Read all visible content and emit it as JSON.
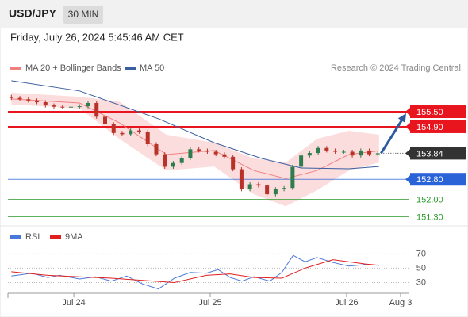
{
  "header": {
    "symbol": "USD/JPY",
    "interval": "30 MIN",
    "datetime": "Friday, July 26, 2024 5:45:46 AM CET"
  },
  "chart_data": [
    {
      "type": "candlestick",
      "credit": "Research © 2024 Trading Central",
      "xlim": [
        -11.6,
        58.9
      ],
      "ylim": [
        151.0,
        156.8
      ],
      "up_color": "#2e7d4f",
      "down_color": "#b83227",
      "candles": {
        "x": [
          -11,
          -9.5,
          -8,
          -6.5,
          -5,
          -3.5,
          -2,
          -0.5,
          1,
          2.5,
          4,
          5.5,
          7,
          8.5,
          10,
          11.5,
          13,
          14.5,
          16,
          17.5,
          19,
          20.5,
          22,
          23.5,
          25,
          26.5,
          28,
          29.5,
          31,
          32.5,
          34,
          35.5,
          37,
          38.5,
          40,
          41.5,
          43,
          44.5,
          46,
          47.5,
          49,
          50.5,
          52,
          53.5
        ],
        "open": [
          156.1,
          156.05,
          156.0,
          155.95,
          155.88,
          155.75,
          155.7,
          155.68,
          155.7,
          155.72,
          155.85,
          155.3,
          155.0,
          154.65,
          154.6,
          154.75,
          154.7,
          154.2,
          153.8,
          153.3,
          153.45,
          153.65,
          154.0,
          153.95,
          153.9,
          153.8,
          153.7,
          153.2,
          152.4,
          152.6,
          152.55,
          152.2,
          152.4,
          152.45,
          153.3,
          153.75,
          153.85,
          154.05,
          153.95,
          153.9,
          153.9,
          153.75,
          153.95,
          153.8
        ],
        "high": [
          156.18,
          156.13,
          156.08,
          156.03,
          155.96,
          155.83,
          155.78,
          155.78,
          155.8,
          155.93,
          155.93,
          155.38,
          155.08,
          154.73,
          154.83,
          154.83,
          154.78,
          154.28,
          153.88,
          153.53,
          153.73,
          154.08,
          154.08,
          154.03,
          153.98,
          153.88,
          153.78,
          153.28,
          152.68,
          152.68,
          152.63,
          152.48,
          152.53,
          153.38,
          153.83,
          153.93,
          154.13,
          154.13,
          154.03,
          153.98,
          153.98,
          154.03,
          154.03,
          153.92
        ],
        "low": [
          155.97,
          155.92,
          155.87,
          155.8,
          155.67,
          155.62,
          155.6,
          155.6,
          155.62,
          155.64,
          155.22,
          154.92,
          154.57,
          154.52,
          154.52,
          154.62,
          154.12,
          153.72,
          153.22,
          153.22,
          153.37,
          153.57,
          153.87,
          153.82,
          153.72,
          153.62,
          153.12,
          152.32,
          152.32,
          152.47,
          152.12,
          152.12,
          152.32,
          152.37,
          153.22,
          153.67,
          153.77,
          153.87,
          153.82,
          153.82,
          153.67,
          153.67,
          153.72,
          153.72
        ],
        "close": [
          156.05,
          156.0,
          155.95,
          155.88,
          155.75,
          155.7,
          155.68,
          155.7,
          155.72,
          155.85,
          155.3,
          155.0,
          154.65,
          154.6,
          154.75,
          154.7,
          154.2,
          153.8,
          153.3,
          153.45,
          153.65,
          154.0,
          153.95,
          153.9,
          153.8,
          153.7,
          153.2,
          152.4,
          152.6,
          152.55,
          152.2,
          152.4,
          152.45,
          153.3,
          153.75,
          153.85,
          154.05,
          153.95,
          153.9,
          153.9,
          153.75,
          153.95,
          153.8,
          153.84
        ]
      },
      "series": [
        {
          "name": "MA 20 + Bollinger Bands",
          "color": "#f08080",
          "band_color": "#fbd5d5",
          "x": [
            -11,
            1,
            8,
            16.3,
            24.7,
            31.7,
            37.3,
            42.8,
            48.4,
            53.7
          ],
          "values": [
            156.01,
            155.85,
            155.06,
            153.79,
            153.95,
            153.15,
            152.83,
            153.15,
            153.79,
            153.94
          ],
          "upper": [
            156.26,
            156.1,
            155.91,
            154.58,
            154.26,
            153.63,
            153.47,
            154.42,
            154.74,
            154.58
          ],
          "lower": [
            155.79,
            155.63,
            154.42,
            153.15,
            153.31,
            152.2,
            151.72,
            152.36,
            153.15,
            153.47
          ]
        },
        {
          "name": "MA 50",
          "color": "#3b5f9e",
          "x": [
            -11,
            1,
            15,
            24.7,
            33.1,
            40,
            48.4,
            53.7
          ],
          "values": [
            156.74,
            156.33,
            155.21,
            154.26,
            153.63,
            153.25,
            153.22,
            153.31
          ]
        }
      ],
      "levels": [
        {
          "value": 155.5,
          "label": "155.50",
          "color": "#e8141e",
          "line": "solid",
          "label_bg": true
        },
        {
          "value": 154.9,
          "label": "154.90",
          "color": "#e8141e",
          "line": "solid",
          "label_bg": true
        },
        {
          "value": 153.84,
          "label": "153.84",
          "color": "#333333",
          "line": "dotted",
          "label_bg": true
        },
        {
          "value": 152.8,
          "label": "152.80",
          "color": "#2a62d8",
          "line": "thin",
          "label_bg": true
        },
        {
          "value": 152.0,
          "label": "152.00",
          "color": "#2a9a2a",
          "line": "thin",
          "label_bg": false
        },
        {
          "value": 151.3,
          "label": "151.30",
          "color": "#2a9a2a",
          "line": "thin",
          "label_bg": false
        }
      ],
      "arrow_color": "#2c5aa0"
    },
    {
      "type": "line",
      "xlim": [
        -11.6,
        58.9
      ],
      "ylim": [
        15,
        97
      ],
      "yticks": [
        30,
        50,
        70
      ],
      "xticks": [
        {
          "value": 0,
          "label": "Jul 24"
        },
        {
          "value": 24,
          "label": "Jul 25"
        },
        {
          "value": 48,
          "label": "Jul 26"
        },
        {
          "value": 57.5,
          "label": "Aug 3"
        }
      ],
      "series": [
        {
          "name": "RSI",
          "color": "#4a78d8",
          "x": [
            -11,
            -7.4,
            -4.6,
            -2.5,
            1,
            3.8,
            6.6,
            9.3,
            12.1,
            14.9,
            17.7,
            20.5,
            23.3,
            25.4,
            27.5,
            29.6,
            31.7,
            34.5,
            36.6,
            38.6,
            40.7,
            42.8,
            45.6,
            48.4,
            51.2,
            53.7
          ],
          "values": [
            39,
            43,
            37,
            40,
            35,
            38,
            32,
            39,
            28,
            21,
            36,
            44,
            43,
            48,
            37,
            32,
            38,
            32,
            44,
            68,
            59,
            65,
            58,
            53,
            55,
            54
          ]
        },
        {
          "name": "9MA",
          "color": "#e02020",
          "x": [
            -11,
            -4.6,
            1,
            6.6,
            12.1,
            17.7,
            23.3,
            27.5,
            31.7,
            36.6,
            40.7,
            45.6,
            51.2,
            53.7
          ],
          "values": [
            45,
            40,
            38,
            36,
            33,
            30,
            40,
            42,
            37,
            36,
            50,
            62,
            56,
            54
          ]
        }
      ]
    }
  ]
}
